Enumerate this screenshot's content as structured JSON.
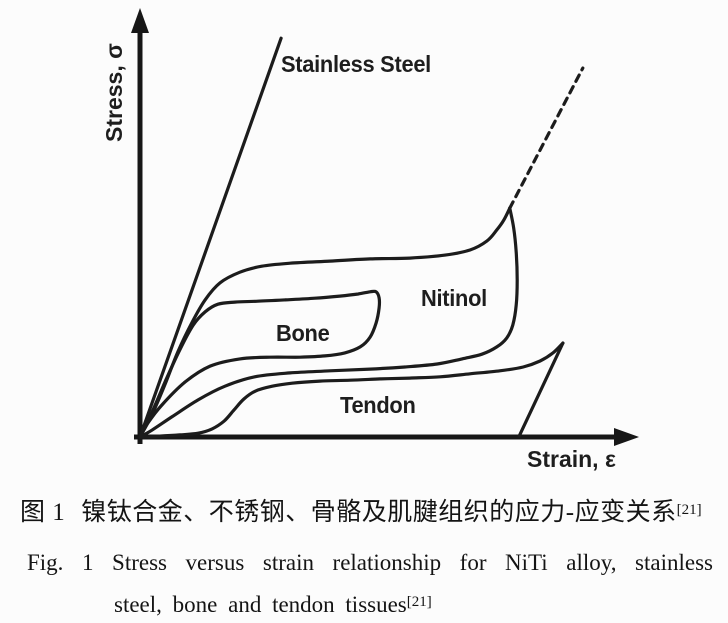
{
  "figure": {
    "caption_zh": {
      "label": "图 1",
      "text": "镍钛合金、不锈钢、骨骼及肌腱组织的应力-应变关系",
      "ref": "[21]"
    },
    "caption_en": {
      "line1": "Fig. 1 Stress versus strain relationship for NiTi alloy, stainless",
      "line2": "steel, bone and tendon tissues",
      "ref": "[21]"
    }
  },
  "chart_data": {
    "type": "line",
    "title": "",
    "xlabel": "Strain, ε",
    "ylabel": "Stress, σ",
    "axes_numeric": false,
    "axis_style": "schematic axes with arrowheads, no ticks, no gridlines",
    "legend_position": "inline curve annotations",
    "ink_color": "#1c1c1c",
    "background": "#fcfcfc",
    "labels": {
      "stainless": "Stainless Steel",
      "nitinol": "Nitinol",
      "bone": "Bone",
      "tendon": "Tendon"
    },
    "series": [
      {
        "name": "Stainless Steel (linear elastic line)",
        "style": "solid",
        "points": [
          [
            0.0,
            0.0
          ],
          [
            0.284,
            0.934
          ]
        ]
      },
      {
        "name": "Nitinol loading (superelastic plateau)",
        "style": "solid",
        "points": [
          [
            0.0,
            0.0
          ],
          [
            0.024,
            0.052
          ],
          [
            0.05,
            0.122
          ],
          [
            0.076,
            0.199
          ],
          [
            0.105,
            0.269
          ],
          [
            0.131,
            0.321
          ],
          [
            0.161,
            0.361
          ],
          [
            0.201,
            0.386
          ],
          [
            0.245,
            0.4
          ],
          [
            0.302,
            0.407
          ],
          [
            0.382,
            0.412
          ],
          [
            0.463,
            0.417
          ],
          [
            0.543,
            0.419
          ],
          [
            0.614,
            0.426
          ],
          [
            0.664,
            0.438
          ],
          [
            0.698,
            0.459
          ],
          [
            0.718,
            0.485
          ],
          [
            0.732,
            0.508
          ],
          [
            0.744,
            0.536
          ]
        ]
      },
      {
        "name": "Nitinol elastic continuation (dashed)",
        "style": "dashed",
        "points": [
          [
            0.744,
            0.536
          ],
          [
            0.891,
            0.864
          ]
        ]
      },
      {
        "name": "Nitinol unloading (hysteresis return)",
        "style": "solid",
        "points": [
          [
            0.744,
            0.536
          ],
          [
            0.752,
            0.489
          ],
          [
            0.757,
            0.433
          ],
          [
            0.759,
            0.368
          ],
          [
            0.757,
            0.309
          ],
          [
            0.75,
            0.262
          ],
          [
            0.738,
            0.232
          ],
          [
            0.718,
            0.211
          ],
          [
            0.688,
            0.194
          ],
          [
            0.648,
            0.183
          ],
          [
            0.598,
            0.171
          ],
          [
            0.533,
            0.164
          ],
          [
            0.463,
            0.159
          ],
          [
            0.382,
            0.155
          ],
          [
            0.302,
            0.15
          ],
          [
            0.231,
            0.141
          ],
          [
            0.171,
            0.119
          ],
          [
            0.117,
            0.087
          ],
          [
            0.064,
            0.047
          ],
          [
            0.024,
            0.016
          ],
          [
            0.0,
            0.0
          ]
        ]
      },
      {
        "name": "Bone loop (loading, hook, return)",
        "style": "solid",
        "points": [
          [
            0.0,
            0.0
          ],
          [
            0.026,
            0.063
          ],
          [
            0.052,
            0.133
          ],
          [
            0.08,
            0.204
          ],
          [
            0.107,
            0.262
          ],
          [
            0.131,
            0.293
          ],
          [
            0.157,
            0.311
          ],
          [
            0.191,
            0.316
          ],
          [
            0.237,
            0.318
          ],
          [
            0.292,
            0.321
          ],
          [
            0.352,
            0.325
          ],
          [
            0.402,
            0.33
          ],
          [
            0.439,
            0.335
          ],
          [
            0.463,
            0.34
          ],
          [
            0.475,
            0.34
          ],
          [
            0.481,
            0.326
          ],
          [
            0.481,
            0.302
          ],
          [
            0.475,
            0.267
          ],
          [
            0.463,
            0.234
          ],
          [
            0.443,
            0.211
          ],
          [
            0.412,
            0.197
          ],
          [
            0.372,
            0.19
          ],
          [
            0.322,
            0.187
          ],
          [
            0.262,
            0.187
          ],
          [
            0.201,
            0.183
          ],
          [
            0.141,
            0.166
          ],
          [
            0.091,
            0.129
          ],
          [
            0.044,
            0.075
          ],
          [
            0.016,
            0.033
          ],
          [
            0.0,
            0.0
          ]
        ]
      },
      {
        "name": "Tendon loading (toe region + plateau)",
        "style": "solid",
        "points": [
          [
            0.0,
            0.0
          ],
          [
            0.04,
            0.002
          ],
          [
            0.08,
            0.005
          ],
          [
            0.117,
            0.009
          ],
          [
            0.145,
            0.019
          ],
          [
            0.169,
            0.037
          ],
          [
            0.189,
            0.063
          ],
          [
            0.209,
            0.089
          ],
          [
            0.233,
            0.108
          ],
          [
            0.266,
            0.119
          ],
          [
            0.306,
            0.126
          ],
          [
            0.362,
            0.131
          ],
          [
            0.423,
            0.133
          ],
          [
            0.483,
            0.136
          ],
          [
            0.543,
            0.138
          ],
          [
            0.604,
            0.141
          ],
          [
            0.664,
            0.148
          ],
          [
            0.724,
            0.155
          ],
          [
            0.771,
            0.164
          ],
          [
            0.805,
            0.178
          ],
          [
            0.831,
            0.197
          ],
          [
            0.851,
            0.22
          ]
        ]
      },
      {
        "name": "Tendon unloading (drop to strain axis)",
        "style": "solid",
        "points": [
          [
            0.851,
            0.22
          ],
          [
            0.763,
            0.002
          ]
        ]
      }
    ]
  }
}
